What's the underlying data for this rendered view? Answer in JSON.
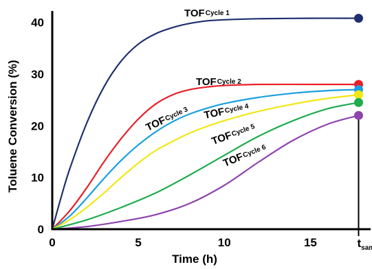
{
  "chart_data": {
    "type": "line",
    "xlabel": "Time (h)",
    "ylabel": "Toluene Conversion (%)",
    "xlim": [
      0,
      18.5
    ],
    "ylim": [
      0,
      43
    ],
    "xticks": [
      {
        "value": 0,
        "label": "0"
      },
      {
        "value": 5,
        "label": "5"
      },
      {
        "value": 10,
        "label": "10"
      },
      {
        "value": 15,
        "label": "15"
      }
    ],
    "yticks": [
      {
        "value": 0,
        "label": "0"
      },
      {
        "value": 10,
        "label": "10"
      },
      {
        "value": 20,
        "label": "20"
      },
      {
        "value": 30,
        "label": "30"
      },
      {
        "value": 40,
        "label": "40"
      }
    ],
    "sample_marker": {
      "x": 17.8,
      "label": "t",
      "label_sub": "sample"
    },
    "grid": false,
    "series": [
      {
        "name": "TOF",
        "name_sub": "Cycle 1",
        "color": "#1f2f6e",
        "x": [
          0,
          0.5,
          1,
          2,
          3,
          4,
          5,
          6,
          7,
          8,
          9,
          10,
          12,
          15,
          17.8
        ],
        "y": [
          0,
          6,
          11.5,
          20.5,
          27.5,
          32.5,
          35.8,
          37.8,
          39.0,
          39.8,
          40.3,
          40.5,
          40.7,
          40.8,
          40.8
        ],
        "end_value": 40.8
      },
      {
        "name": "TOF",
        "name_sub": "Cycle 2",
        "color": "#e8202a",
        "x": [
          0,
          1,
          2,
          3,
          4,
          5,
          6,
          7,
          8,
          9,
          10,
          12,
          15,
          17.8
        ],
        "y": [
          0,
          3.5,
          8,
          13,
          17.5,
          21.3,
          24.2,
          26.0,
          27.0,
          27.5,
          27.8,
          28.0,
          28.0,
          28.0
        ],
        "end_value": 28.0
      },
      {
        "name": "TOF",
        "name_sub": "Cycle 3",
        "color": "#1a9fe0",
        "x": [
          0,
          1,
          2,
          3,
          4,
          5,
          6,
          7,
          8,
          9,
          10,
          12,
          14,
          16,
          17.8
        ],
        "y": [
          0,
          2.5,
          6,
          9.8,
          13.3,
          16.3,
          18.8,
          20.8,
          22.3,
          23.4,
          24.3,
          25.5,
          26.3,
          26.8,
          27.0
        ],
        "end_value": 27.0
      },
      {
        "name": "TOF",
        "name_sub": "Cycle 4",
        "color": "#f2e713",
        "x": [
          0,
          1,
          2,
          3,
          4,
          5,
          6,
          7,
          8,
          9,
          10,
          12,
          14,
          16,
          17.8
        ],
        "y": [
          0,
          1.8,
          4.2,
          7,
          10,
          12.8,
          15.2,
          17.0,
          18.6,
          19.9,
          21.0,
          22.8,
          24.2,
          25.3,
          26.0
        ],
        "end_value": 26.0
      },
      {
        "name": "TOF",
        "name_sub": "Cycle 5",
        "color": "#1fab4e",
        "x": [
          0,
          2,
          4,
          6,
          8,
          10,
          12,
          14,
          16,
          17.8
        ],
        "y": [
          0,
          1.8,
          4.2,
          7.0,
          10.5,
          14.3,
          18.0,
          21.0,
          23.3,
          24.5
        ],
        "end_value": 24.5
      },
      {
        "name": "TOF",
        "name_sub": "Cycle 6",
        "color": "#8e44ad",
        "x": [
          0,
          2,
          4,
          6,
          8,
          10,
          12,
          14,
          16,
          17.8
        ],
        "y": [
          0,
          0.5,
          1.5,
          2.8,
          5.0,
          8.5,
          13.0,
          17.2,
          20.3,
          22.0
        ],
        "end_value": 22.0
      }
    ]
  }
}
